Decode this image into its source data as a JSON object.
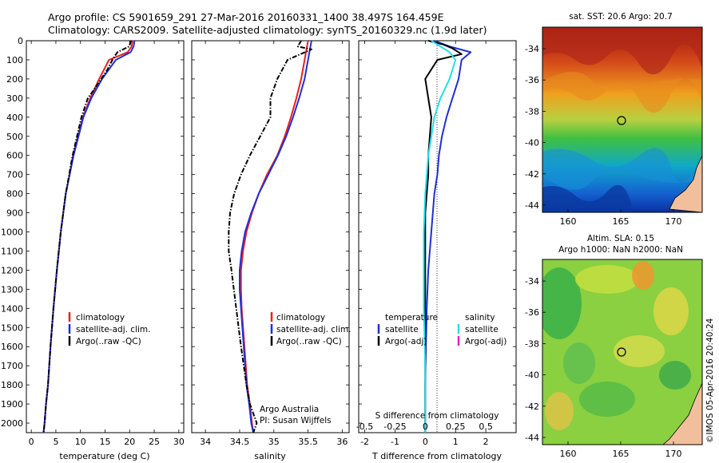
{
  "figure": {
    "title_line1": "Argo profile: CS 5901659_291 27-Mar-2016 20160331_1400 38.497S 164.459E",
    "title_line2": "Climatology: CARS2009. Satellite-adjusted climatology: synTS_20160329.nc (1.9d later)",
    "footer": "©IMOS 05-Apr-2016 20:40:24",
    "watermark_line1": "Argo Australia",
    "watermark_line2": "PI: Susan Wijffels"
  },
  "colors": {
    "climatology": "#e8201e",
    "satellite": "#1f2fd6",
    "argo": "#000000",
    "cyan": "#22e0e8",
    "magenta": "#e020d0"
  },
  "chart_data": [
    {
      "type": "line",
      "panel": "temperature",
      "xlabel": "temperature (deg C)",
      "ylabel": "",
      "xlim": [
        -1,
        31
      ],
      "ylim": [
        2050,
        0
      ],
      "xticks": [
        0,
        5,
        10,
        15,
        20,
        25,
        30
      ],
      "yticks": [
        0,
        100,
        200,
        300,
        400,
        500,
        600,
        700,
        800,
        900,
        1000,
        1100,
        1200,
        1300,
        1400,
        1500,
        1600,
        1700,
        1800,
        1900,
        2000
      ],
      "legend": [
        "climatology",
        "satellite-adj. clim.",
        "Argo(..raw -QC)"
      ],
      "legend_placement": "lower-right",
      "series": [
        {
          "name": "climatology",
          "x": [
            20.6,
            20.4,
            19.6,
            15.8,
            14.8,
            13.8,
            12.9,
            12.0,
            10.5,
            9.5,
            8.5,
            7.8,
            7.0,
            6.0,
            5.2,
            4.5,
            3.9,
            3.4,
            3.0,
            2.7,
            2.5
          ],
          "y": [
            0,
            30,
            60,
            100,
            150,
            200,
            250,
            300,
            400,
            500,
            600,
            700,
            800,
            1000,
            1200,
            1400,
            1600,
            1800,
            1900,
            2000,
            2050
          ]
        },
        {
          "name": "satellite-adj. clim.",
          "x": [
            21.0,
            20.8,
            20.2,
            17.2,
            15.8,
            14.4,
            13.3,
            12.2,
            10.6,
            9.6,
            8.6,
            7.8,
            7.0,
            6.0,
            5.2,
            4.5,
            3.9,
            3.4,
            3.0,
            2.7,
            2.5
          ],
          "y": [
            0,
            30,
            60,
            100,
            150,
            200,
            250,
            300,
            400,
            500,
            600,
            700,
            800,
            1000,
            1200,
            1400,
            1600,
            1800,
            1900,
            2000,
            2050
          ]
        },
        {
          "name": "Argo(..raw -QC)",
          "x": [
            20.3,
            19.9,
            17.5,
            16.5,
            15.5,
            14.2,
            12.9,
            11.5,
            10.2,
            9.3,
            8.4,
            7.7,
            7.0,
            6.0,
            5.2,
            4.5,
            3.9,
            3.4,
            3.0,
            2.7,
            2.5
          ],
          "y": [
            0,
            30,
            60,
            100,
            150,
            200,
            250,
            300,
            400,
            500,
            600,
            700,
            800,
            1000,
            1200,
            1400,
            1600,
            1800,
            1900,
            2000,
            2050
          ]
        }
      ]
    },
    {
      "type": "line",
      "panel": "salinity",
      "xlabel": "salinity",
      "ylabel": "",
      "xlim": [
        33.8,
        36.1
      ],
      "ylim": [
        2050,
        0
      ],
      "xticks": [
        34,
        34.5,
        35,
        35.5,
        36
      ],
      "legend": [
        "climatology",
        "satellite-adj. clim.",
        "Argo(..raw -QC)"
      ],
      "legend_placement": "lower-right",
      "series": [
        {
          "name": "climatology",
          "x": [
            35.5,
            35.45,
            35.4,
            35.33,
            35.25,
            35.16,
            35.05,
            34.9,
            34.78,
            34.68,
            34.6,
            34.55,
            34.52,
            34.52,
            34.53,
            34.57,
            34.61,
            34.65,
            34.68,
            34.7
          ],
          "y": [
            0,
            100,
            200,
            300,
            400,
            500,
            600,
            700,
            800,
            900,
            1000,
            1100,
            1200,
            1300,
            1400,
            1600,
            1800,
            1900,
            2000,
            2050
          ]
        },
        {
          "name": "satellite-adj. clim.",
          "x": [
            35.55,
            35.5,
            35.45,
            35.37,
            35.28,
            35.18,
            35.06,
            34.92,
            34.78,
            34.67,
            34.58,
            34.53,
            34.5,
            34.5,
            34.52,
            34.56,
            34.6,
            34.64,
            34.67,
            34.7
          ],
          "y": [
            0,
            100,
            200,
            300,
            400,
            500,
            600,
            700,
            800,
            900,
            1000,
            1100,
            1200,
            1300,
            1400,
            1600,
            1800,
            1900,
            2000,
            2050
          ]
        },
        {
          "name": "Argo(..raw -QC)",
          "x": [
            35.4,
            35.35,
            35.55,
            35.2,
            35.05,
            34.95,
            34.95,
            34.8,
            34.65,
            34.52,
            34.42,
            34.36,
            34.34,
            34.34,
            34.38,
            34.45,
            34.52,
            34.6,
            34.65,
            34.75,
            34.7
          ],
          "y": [
            0,
            30,
            45,
            100,
            200,
            300,
            400,
            500,
            600,
            700,
            800,
            900,
            1000,
            1100,
            1200,
            1400,
            1600,
            1800,
            1900,
            2000,
            2050
          ]
        }
      ]
    },
    {
      "type": "line",
      "panel": "difference",
      "xlabel": "T difference from climatology",
      "xlabel_top": "S difference from climatology",
      "ylabel": "",
      "xlim": [
        -2.2,
        3.0
      ],
      "ylim": [
        2050,
        0
      ],
      "xticks": [
        -2,
        -1,
        0,
        1,
        2
      ],
      "top_ticks": [
        "-0.5",
        "-0.25",
        "0",
        "0.25",
        "0.5"
      ],
      "top_tick_positions": [
        -2,
        -1,
        0,
        1,
        2
      ],
      "legend_left_title": "temperature",
      "legend_right_title": "salinity",
      "legend_left": [
        "satellite",
        "Argo(-adj)"
      ],
      "legend_right": [
        "satellite",
        "Argo(-adj)"
      ],
      "legend_placement": "lower-center",
      "series": [
        {
          "name": "temperature satellite",
          "x": [
            0.3,
            0.8,
            1.5,
            1.2,
            1.1,
            0.9,
            0.7,
            0.55,
            0.45,
            0.4,
            0.3,
            0.25,
            0.2,
            0.1,
            0.05,
            0.02,
            0.0,
            0.0
          ],
          "y": [
            0,
            30,
            60,
            100,
            200,
            300,
            400,
            500,
            600,
            700,
            800,
            900,
            1000,
            1200,
            1400,
            1600,
            1800,
            2050
          ]
        },
        {
          "name": "temperature Argo(-adj)",
          "x": [
            0.1,
            0.6,
            0.9,
            1.2,
            0.4,
            0.0,
            0.1,
            0.2,
            0.15,
            0.1,
            0.1,
            0.05,
            0.0,
            0.0,
            0.0,
            0.0,
            0.0,
            0.0
          ],
          "y": [
            0,
            20,
            40,
            70,
            100,
            200,
            300,
            400,
            500,
            600,
            700,
            800,
            900,
            1000,
            1200,
            1400,
            1600,
            2050
          ]
        },
        {
          "name": "salinity satellite",
          "x": [
            0.2,
            0.8,
            1.0,
            0.8,
            0.5,
            0.3,
            0.2,
            0.1,
            0.0,
            -0.05,
            -0.05,
            -0.05,
            0.0,
            0.0
          ],
          "y": [
            0,
            60,
            100,
            200,
            300,
            400,
            500,
            600,
            800,
            1000,
            1200,
            1400,
            1700,
            2050
          ]
        }
      ]
    }
  ],
  "maps": [
    {
      "title": "sat. SST: 20.6  Argo: 20.7",
      "xticks": [
        "160",
        "165",
        "170"
      ],
      "yticks": [
        "-34",
        "-36",
        "-38",
        "-40",
        "-42",
        "-44"
      ]
    },
    {
      "title_line1": "Altim. SLA: 0.15",
      "title_line2": "Argo h1000: NaN  h2000: NaN",
      "xticks": [
        "160",
        "165",
        "170"
      ],
      "yticks": [
        "-34",
        "-36",
        "-38",
        "-40",
        "-42",
        "-44"
      ]
    }
  ]
}
